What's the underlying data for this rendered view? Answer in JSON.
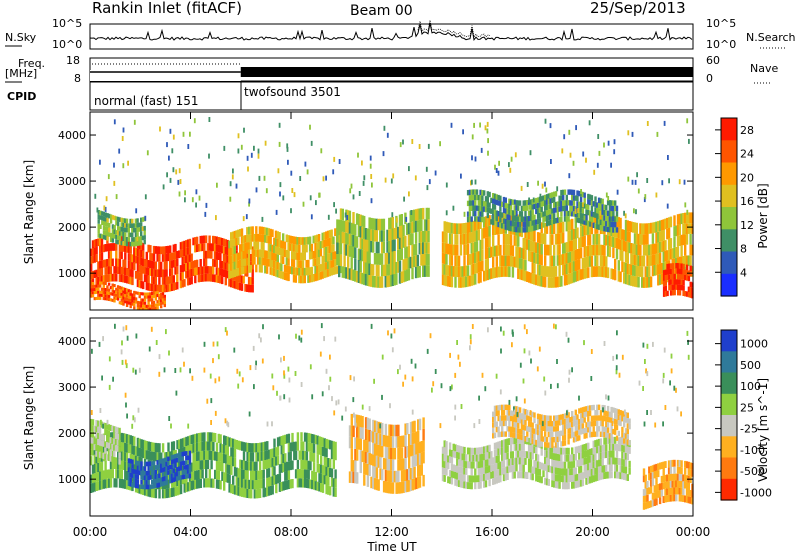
{
  "header": {
    "title": "Rankin Inlet (fitACF)",
    "beam": "Beam 00",
    "date": "25/Sep/2013"
  },
  "noise_panel": {
    "left_label": "N.Sky",
    "right_label": "N.Search",
    "left_ticks": [
      "10^5",
      "10^0"
    ],
    "right_ticks": [
      "10^5",
      "10^0"
    ]
  },
  "freq_panel": {
    "left_label": "Freq.",
    "left_unit": "[MHz]",
    "left_ticks": [
      "18",
      "8"
    ],
    "right_label": "Nave",
    "right_ticks": [
      "60",
      "0"
    ]
  },
  "cpid_panel": {
    "label": "CPID",
    "modes": [
      {
        "name": "normal (fast) 151",
        "start_hour": 0,
        "end_hour": 6
      },
      {
        "name": "twofsound 3501",
        "start_hour": 6,
        "end_hour": 24
      }
    ]
  },
  "x_axis": {
    "label": "Time UT",
    "ticks": [
      "00:00",
      "04:00",
      "08:00",
      "12:00",
      "16:00",
      "20:00",
      "00:00"
    ]
  },
  "chart_data": [
    {
      "type": "heatmap",
      "name": "power",
      "ylabel": "Slant Range [km]",
      "yticks": [
        "1000",
        "2000",
        "3000",
        "4000"
      ],
      "ylim": [
        200,
        4500
      ],
      "xlim_hours": [
        0,
        24
      ],
      "colorbar": {
        "label": "Power [dB]",
        "ticks": [
          "4",
          "8",
          "12",
          "16",
          "20",
          "24",
          "28"
        ],
        "range": [
          0,
          30
        ],
        "colors": [
          "#1a2eff",
          "#2f5ab8",
          "#3f8f66",
          "#8fc53a",
          "#e0c020",
          "#ff9900",
          "#ff5500",
          "#ff1a00"
        ]
      },
      "regions": [
        {
          "t0": 0.0,
          "t1": 6.5,
          "r0": 700,
          "r1": 1700,
          "level": 26
        },
        {
          "t0": 0.0,
          "t1": 3.0,
          "r0": 300,
          "r1": 700,
          "level": 24
        },
        {
          "t0": 0.3,
          "t1": 2.2,
          "r0": 1700,
          "r1": 2300,
          "level": 12
        },
        {
          "t0": 5.5,
          "t1": 10.0,
          "r0": 900,
          "r1": 1900,
          "level": 18
        },
        {
          "t0": 9.8,
          "t1": 13.5,
          "r0": 800,
          "r1": 2300,
          "level": 14
        },
        {
          "t0": 14.0,
          "t1": 24.0,
          "r0": 800,
          "r1": 2200,
          "level": 18
        },
        {
          "t0": 22.8,
          "t1": 24.0,
          "r0": 400,
          "r1": 1100,
          "level": 27
        },
        {
          "t0": 15.0,
          "t1": 21.0,
          "r0": 2000,
          "r1": 2700,
          "level": 10
        }
      ]
    },
    {
      "type": "heatmap",
      "name": "velocity",
      "ylabel": "Slant Range [km]",
      "yticks": [
        "1000",
        "2000",
        "3000",
        "4000"
      ],
      "ylim": [
        200,
        4500
      ],
      "xlim_hours": [
        0,
        24
      ],
      "colorbar": {
        "label": "Velocity [m s^-1]",
        "ticks": [
          "1000",
          "500",
          "100",
          "25",
          "-25",
          "-100",
          "-500",
          "-1000"
        ],
        "range": [
          -1200,
          1200
        ],
        "colors": [
          "#1f3fcc",
          "#2f7a9a",
          "#3a8f5a",
          "#8fd040",
          "#c8c8c0",
          "#ffb020",
          "#ff7a10",
          "#ff2a00"
        ]
      },
      "regions": [
        {
          "t0": 0.0,
          "t1": 9.8,
          "r0": 700,
          "r1": 1900,
          "level": 300
        },
        {
          "t0": 1.5,
          "t1": 4.0,
          "r0": 900,
          "r1": 1500,
          "level": 900
        },
        {
          "t0": 0.0,
          "t1": 1.2,
          "r0": 1400,
          "r1": 2200,
          "level": 0
        },
        {
          "t0": 10.3,
          "t1": 13.3,
          "r0": 800,
          "r1": 2300,
          "level": -400
        },
        {
          "t0": 14.0,
          "t1": 21.5,
          "r0": 900,
          "r1": 1800,
          "level": 0
        },
        {
          "t0": 16.0,
          "t1": 21.5,
          "r0": 1800,
          "r1": 2500,
          "level": -300
        },
        {
          "t0": 22.0,
          "t1": 24.0,
          "r0": 400,
          "r1": 1300,
          "level": -500
        }
      ]
    }
  ]
}
